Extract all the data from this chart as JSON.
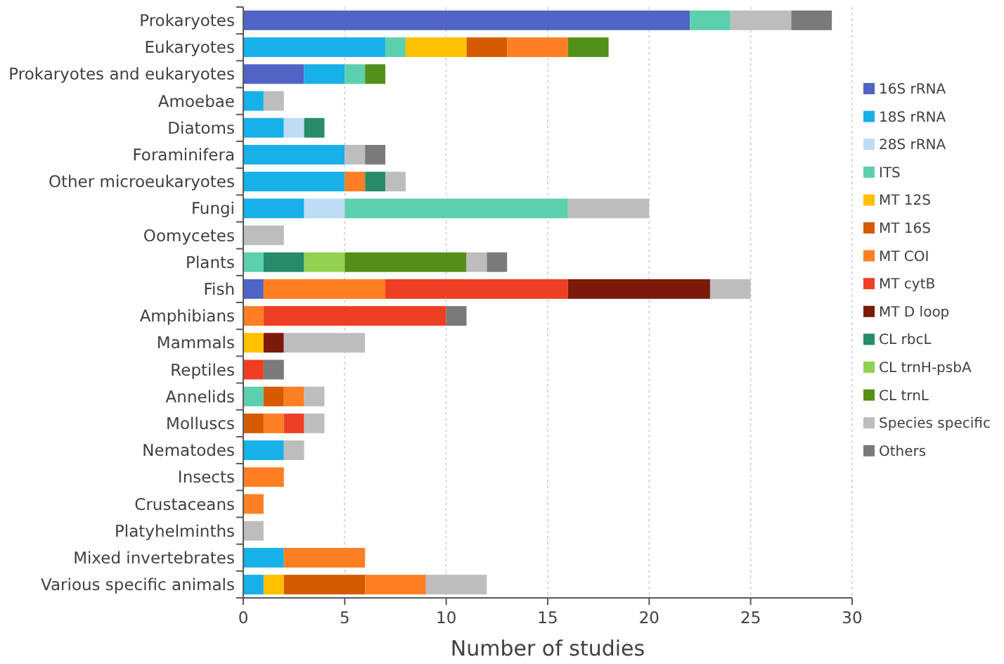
{
  "chart_data": {
    "type": "bar",
    "orientation": "horizontal",
    "stacked": true,
    "xlabel": "Number of studies",
    "xlim": [
      0,
      30
    ],
    "xticks": [
      0,
      5,
      10,
      15,
      20,
      25,
      30
    ],
    "grid": "x",
    "legend": "right",
    "categories": [
      "Prokaryotes",
      "Eukaryotes",
      "Prokaryotes and eukaryotes",
      "Amoebae",
      "Diatoms",
      "Foraminifera",
      "Other microeukaryotes",
      "Fungi",
      "Oomycetes",
      "Plants",
      "Fish",
      "Amphibians",
      "Mammals",
      "Reptiles",
      "Annelids",
      "Molluscs",
      "Nematodes",
      "Insects",
      "Crustaceans",
      "Platyhelminths",
      "Mixed invertebrates",
      "Various specific animals"
    ],
    "series": [
      {
        "name": "16S rRNA",
        "color": "#4f64c4",
        "values": [
          22,
          null,
          3,
          null,
          null,
          null,
          null,
          null,
          null,
          null,
          1,
          null,
          null,
          null,
          null,
          null,
          null,
          null,
          null,
          null,
          null,
          null
        ]
      },
      {
        "name": "18S rRNA",
        "color": "#18b0e8",
        "values": [
          null,
          7,
          2,
          1,
          2,
          5,
          5,
          3,
          null,
          null,
          null,
          null,
          null,
          null,
          null,
          null,
          2,
          null,
          null,
          null,
          2,
          1
        ]
      },
      {
        "name": "28S rRNA",
        "color": "#bcdcf6",
        "values": [
          null,
          null,
          null,
          null,
          1,
          null,
          null,
          2,
          null,
          null,
          null,
          null,
          null,
          null,
          null,
          null,
          null,
          null,
          null,
          null,
          null,
          null
        ]
      },
      {
        "name": "ITS",
        "color": "#5ccfae",
        "values": [
          2,
          1,
          1,
          null,
          null,
          null,
          null,
          11,
          null,
          1,
          null,
          null,
          null,
          null,
          1,
          null,
          null,
          null,
          null,
          null,
          null,
          null
        ]
      },
      {
        "name": "MT 12S",
        "color": "#ffc000",
        "values": [
          null,
          3,
          null,
          null,
          null,
          null,
          null,
          null,
          null,
          null,
          null,
          null,
          1,
          null,
          null,
          null,
          null,
          null,
          null,
          null,
          null,
          1
        ]
      },
      {
        "name": "MT 16S",
        "color": "#d55a00",
        "values": [
          null,
          2,
          null,
          null,
          null,
          null,
          null,
          null,
          null,
          null,
          null,
          null,
          null,
          null,
          1,
          1,
          null,
          null,
          null,
          null,
          null,
          4
        ]
      },
      {
        "name": "MT COI",
        "color": "#fd7f22",
        "values": [
          null,
          3,
          null,
          null,
          null,
          null,
          1,
          null,
          null,
          null,
          6,
          1,
          null,
          null,
          1,
          1,
          null,
          2,
          1,
          null,
          4,
          3
        ]
      },
      {
        "name": "MT cytB",
        "color": "#ee3f25",
        "values": [
          null,
          null,
          null,
          null,
          null,
          null,
          null,
          null,
          null,
          null,
          9,
          9,
          null,
          1,
          null,
          1,
          null,
          null,
          null,
          null,
          null,
          null
        ]
      },
      {
        "name": "MT D loop",
        "color": "#7b1a0b",
        "values": [
          null,
          null,
          null,
          null,
          null,
          null,
          null,
          null,
          null,
          null,
          7,
          null,
          1,
          null,
          null,
          null,
          null,
          null,
          null,
          null,
          null,
          null
        ]
      },
      {
        "name": "CL rbcL",
        "color": "#278a6b",
        "values": [
          null,
          null,
          null,
          null,
          1,
          null,
          1,
          null,
          null,
          2,
          null,
          null,
          null,
          null,
          null,
          null,
          null,
          null,
          null,
          null,
          null,
          null
        ]
      },
      {
        "name": "CL trnH-psbA",
        "color": "#92d050",
        "values": [
          null,
          null,
          null,
          null,
          null,
          null,
          null,
          null,
          null,
          2,
          null,
          null,
          null,
          null,
          null,
          null,
          null,
          null,
          null,
          null,
          null,
          null
        ]
      },
      {
        "name": "CL trnL",
        "color": "#548f1a",
        "values": [
          null,
          2,
          1,
          null,
          null,
          null,
          null,
          null,
          null,
          6,
          null,
          null,
          null,
          null,
          null,
          null,
          null,
          null,
          null,
          null,
          null,
          null
        ]
      },
      {
        "name": "Species specific",
        "color": "#bdbdbd",
        "values": [
          3,
          null,
          null,
          1,
          null,
          1,
          1,
          4,
          2,
          1,
          2,
          null,
          4,
          null,
          1,
          1,
          1,
          null,
          null,
          1,
          null,
          3
        ]
      },
      {
        "name": "Others",
        "color": "#7a7a7a",
        "values": [
          2,
          null,
          null,
          null,
          null,
          1,
          null,
          null,
          null,
          1,
          null,
          1,
          null,
          1,
          null,
          null,
          null,
          null,
          null,
          null,
          null,
          null
        ]
      }
    ]
  }
}
